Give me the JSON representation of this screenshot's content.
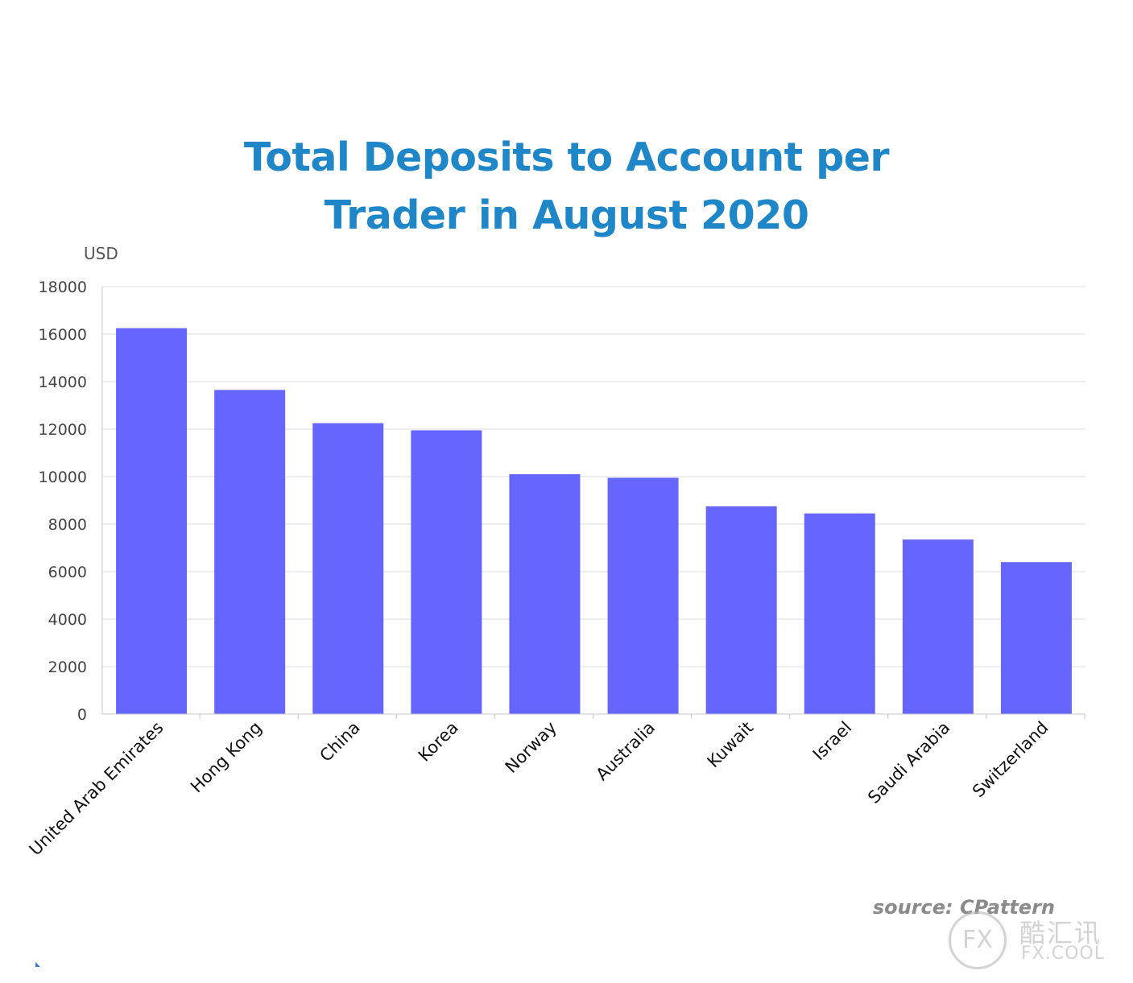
{
  "chart_data": {
    "type": "bar",
    "title_lines": [
      "Total Deposits to Account per",
      "Trader in August 2020"
    ],
    "xlabel": "",
    "ylabel": "USD",
    "ylim": [
      0,
      18000
    ],
    "yticks": [
      "0",
      "2000",
      "4000",
      "6000",
      "8000",
      "10000",
      "12000",
      "14000",
      "16000",
      "18000"
    ],
    "grid": true,
    "legend": "none",
    "bar_color": "#6666ff",
    "categories": [
      "United Arab Emirates",
      "Hong Kong",
      "China",
      "Korea",
      "Norway",
      "Australia",
      "Kuwait",
      "Israel",
      "Saudi Arabia",
      "Switzerland"
    ],
    "values": [
      16250,
      13650,
      12250,
      11950,
      10100,
      9950,
      8750,
      8450,
      7350,
      6400
    ]
  },
  "source": "source: CPattern",
  "watermark": {
    "logo_text": "FX",
    "name": "酷汇讯",
    "domain": "FX.COOL"
  },
  "colors": {
    "title": "#1f86c8",
    "bars": "#6666ff"
  }
}
